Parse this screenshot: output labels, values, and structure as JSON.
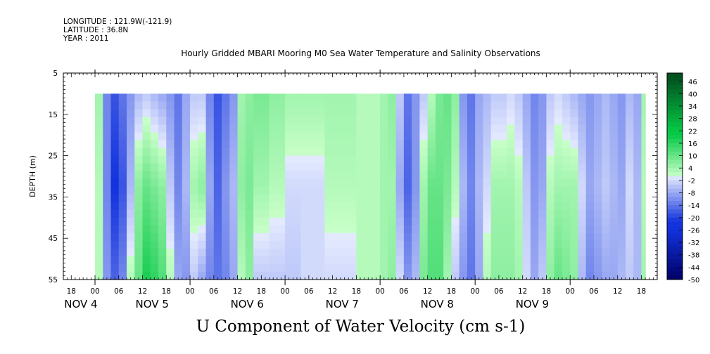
{
  "header": {
    "longitude": "LONGITUDE : 121.9W(-121.9)",
    "latitude": "LATITUDE : 36.8N",
    "year": "YEAR : 2011"
  },
  "plot_title": "Hourly Gridded MBARI Mooring M0 Sea Water Temperature and Salinity Observations",
  "main_title": "U Component of Water Velocity (cm s-1)",
  "chart_data": {
    "type": "heatmap",
    "title": "U Component of Water Velocity (cm s-1)",
    "subtitle": "Hourly Gridded MBARI Mooring M0 Sea Water Temperature and Salinity Observations",
    "ylabel": "DEPTH (m)",
    "xlabel": "",
    "y_inverted": true,
    "ylim": [
      5,
      55
    ],
    "y_ticks": [
      5,
      15,
      25,
      35,
      45,
      55
    ],
    "x_range_hours": [
      -8,
      142
    ],
    "x_tick_hours": [
      -6,
      0,
      6,
      12,
      18,
      24,
      30,
      36,
      42,
      48,
      54,
      60,
      66,
      72,
      78,
      84,
      90,
      96,
      102,
      108,
      114,
      120,
      126,
      132,
      138
    ],
    "x_tick_labels": [
      "18",
      "00",
      "06",
      "12",
      "18",
      "00",
      "06",
      "12",
      "18",
      "00",
      "06",
      "12",
      "18",
      "00",
      "06",
      "12",
      "18",
      "00",
      "06",
      "12",
      "18",
      "00",
      "06",
      "12",
      "18"
    ],
    "day_labels": [
      {
        "label": "NOV 4",
        "hour": -6
      },
      {
        "label": "NOV 5",
        "hour": 12
      },
      {
        "label": "NOV 6",
        "hour": 36
      },
      {
        "label": "NOV 7",
        "hour": 60
      },
      {
        "label": "NOV 8",
        "hour": 84
      },
      {
        "label": "NOV 9",
        "hour": 108
      }
    ],
    "data_depth_range": [
      10,
      55
    ],
    "data_hour_range": [
      0,
      139
    ],
    "colorbar": {
      "min": -50,
      "max": 50,
      "step": 2,
      "tick_labels": [
        "46",
        "40",
        "34",
        "28",
        "22",
        "16",
        "10",
        "4",
        "-2",
        "-8",
        "-14",
        "-20",
        "-26",
        "-32",
        "-38",
        "-44",
        "-50"
      ]
    },
    "columns": [
      {
        "hour": 0,
        "top": 4,
        "mid": 2,
        "bottom": 2
      },
      {
        "hour": 2,
        "top": -12,
        "mid": -12,
        "bottom": -10
      },
      {
        "hour": 4,
        "top": -18,
        "mid": -22,
        "bottom": -16
      },
      {
        "hour": 6,
        "top": -14,
        "mid": -18,
        "bottom": -12
      },
      {
        "hour": 8,
        "top": -10,
        "mid": -6,
        "bottom": 2
      },
      {
        "hour": 10,
        "top": -6,
        "mid": 6,
        "bottom": 10
      },
      {
        "hour": 12,
        "top": -4,
        "mid": 10,
        "bottom": 18
      },
      {
        "hour": 14,
        "top": -6,
        "mid": 8,
        "bottom": 16
      },
      {
        "hour": 16,
        "top": -8,
        "mid": 6,
        "bottom": 12
      },
      {
        "hour": 18,
        "top": -10,
        "mid": -4,
        "bottom": 2
      },
      {
        "hour": 20,
        "top": -14,
        "mid": -12,
        "bottom": -8
      },
      {
        "hour": 22,
        "top": -8,
        "mid": -6,
        "bottom": -10
      },
      {
        "hour": 24,
        "top": -4,
        "mid": 4,
        "bottom": -4
      },
      {
        "hour": 26,
        "top": -4,
        "mid": 6,
        "bottom": -8
      },
      {
        "hour": 28,
        "top": -12,
        "mid": -8,
        "bottom": -12
      },
      {
        "hour": 30,
        "top": -18,
        "mid": -16,
        "bottom": -14
      },
      {
        "hour": 32,
        "top": -14,
        "mid": -10,
        "bottom": -12
      },
      {
        "hour": 34,
        "top": -10,
        "mid": -6,
        "bottom": -8
      },
      {
        "hour": 36,
        "top": 4,
        "mid": 6,
        "bottom": 2
      },
      {
        "hour": 38,
        "top": 6,
        "mid": 8,
        "bottom": 6
      },
      {
        "hour": 40,
        "top": 8,
        "mid": 4,
        "bottom": -4
      },
      {
        "hour": 44,
        "top": 6,
        "mid": 2,
        "bottom": -4
      },
      {
        "hour": 48,
        "top": 4,
        "mid": -2,
        "bottom": -4
      },
      {
        "hour": 52,
        "top": 4,
        "mid": -2,
        "bottom": -2
      },
      {
        "hour": 58,
        "top": 4,
        "mid": 2,
        "bottom": -2
      },
      {
        "hour": 66,
        "top": 2,
        "mid": 2,
        "bottom": 2
      },
      {
        "hour": 70,
        "top": 2,
        "mid": 2,
        "bottom": 2
      },
      {
        "hour": 72,
        "top": 4,
        "mid": 4,
        "bottom": 4
      },
      {
        "hour": 74,
        "top": 6,
        "mid": 4,
        "bottom": 6
      },
      {
        "hour": 76,
        "top": -4,
        "mid": -8,
        "bottom": -2
      },
      {
        "hour": 78,
        "top": -14,
        "mid": -16,
        "bottom": -10
      },
      {
        "hour": 80,
        "top": -10,
        "mid": -10,
        "bottom": -6
      },
      {
        "hour": 82,
        "top": -4,
        "mid": 4,
        "bottom": 8
      },
      {
        "hour": 84,
        "top": 2,
        "mid": 10,
        "bottom": 12
      },
      {
        "hour": 86,
        "top": 8,
        "mid": 10,
        "bottom": 12
      },
      {
        "hour": 88,
        "top": 10,
        "mid": 8,
        "bottom": 4
      },
      {
        "hour": 90,
        "top": 6,
        "mid": 2,
        "bottom": -4
      },
      {
        "hour": 92,
        "top": -10,
        "mid": -6,
        "bottom": -10
      },
      {
        "hour": 94,
        "top": -14,
        "mid": -12,
        "bottom": -14
      },
      {
        "hour": 96,
        "top": -8,
        "mid": -6,
        "bottom": -8
      },
      {
        "hour": 98,
        "top": -6,
        "mid": -2,
        "bottom": 2
      },
      {
        "hour": 100,
        "top": -4,
        "mid": 4,
        "bottom": 6
      },
      {
        "hour": 104,
        "top": -2,
        "mid": 4,
        "bottom": 6
      },
      {
        "hour": 106,
        "top": -4,
        "mid": 2,
        "bottom": 4
      },
      {
        "hour": 108,
        "top": -8,
        "mid": -4,
        "bottom": -2
      },
      {
        "hour": 110,
        "top": -12,
        "mid": -10,
        "bottom": -8
      },
      {
        "hour": 112,
        "top": -10,
        "mid": -8,
        "bottom": -4
      },
      {
        "hour": 114,
        "top": -4,
        "mid": 2,
        "bottom": 6
      },
      {
        "hour": 116,
        "top": -2,
        "mid": 4,
        "bottom": 10
      },
      {
        "hour": 118,
        "top": -4,
        "mid": 4,
        "bottom": 8
      },
      {
        "hour": 120,
        "top": -6,
        "mid": 4,
        "bottom": 6
      },
      {
        "hour": 122,
        "top": -8,
        "mid": -2,
        "bottom": -6
      },
      {
        "hour": 124,
        "top": -10,
        "mid": -8,
        "bottom": -12
      },
      {
        "hour": 126,
        "top": -8,
        "mid": -6,
        "bottom": -10
      },
      {
        "hour": 128,
        "top": -6,
        "mid": -4,
        "bottom": -8
      },
      {
        "hour": 130,
        "top": -8,
        "mid": -6,
        "bottom": -8
      },
      {
        "hour": 132,
        "top": -10,
        "mid": -8,
        "bottom": -6
      },
      {
        "hour": 134,
        "top": -6,
        "mid": -2,
        "bottom": -4
      },
      {
        "hour": 136,
        "top": -8,
        "mid": -6,
        "bottom": -6
      },
      {
        "hour": 138,
        "top": 4,
        "mid": 2,
        "bottom": 4
      },
      {
        "hour": 139,
        "top": 4,
        "mid": 4,
        "bottom": 4
      }
    ]
  }
}
